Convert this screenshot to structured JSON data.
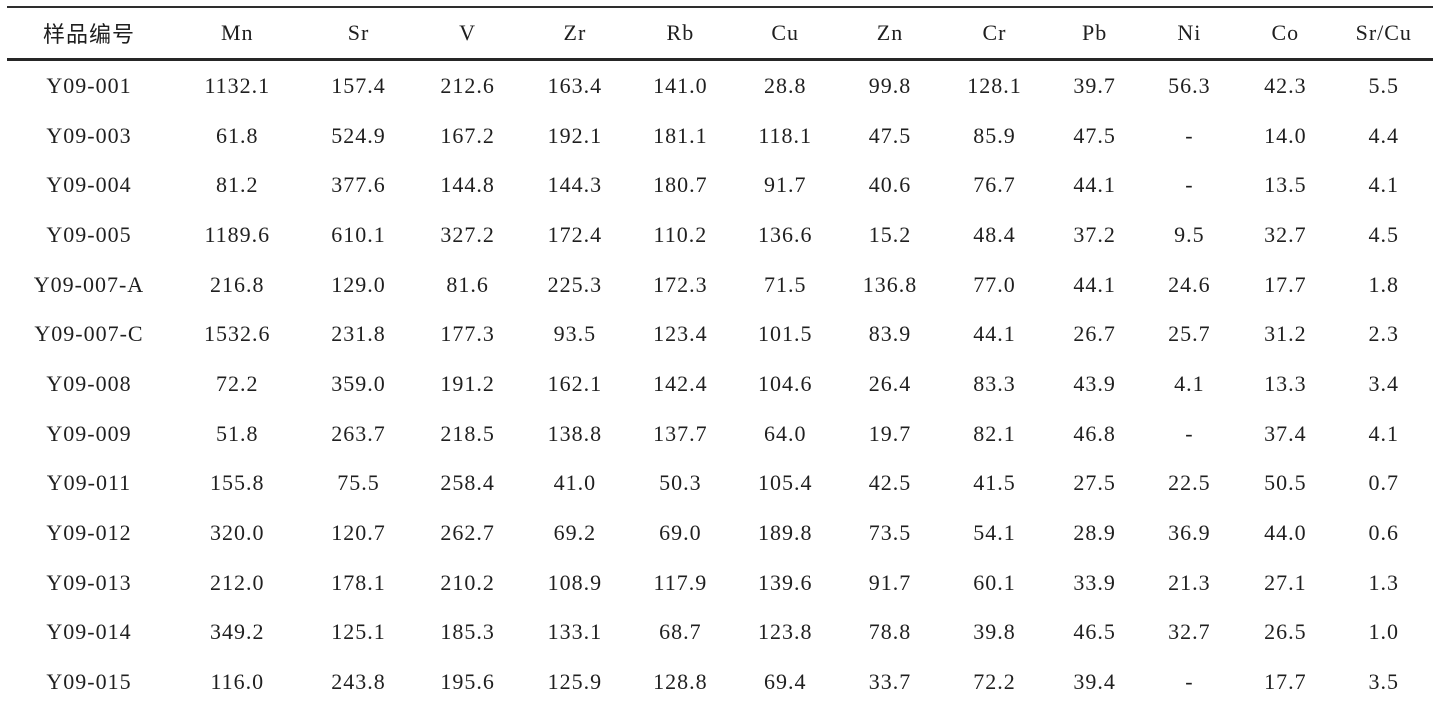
{
  "table": {
    "missing_value_marker": "-",
    "columns": [
      "样品编号",
      "Mn",
      "Sr",
      "V",
      "Zr",
      "Rb",
      "Cu",
      "Zn",
      "Cr",
      "Pb",
      "Ni",
      "Co",
      "Sr/Cu"
    ],
    "rows": [
      {
        "sample_id": "Y09-001",
        "values": [
          "1132.1",
          "157.4",
          "212.6",
          "163.4",
          "141.0",
          "28.8",
          "99.8",
          "128.1",
          "39.7",
          "56.3",
          "42.3",
          "5.5"
        ]
      },
      {
        "sample_id": "Y09-003",
        "values": [
          "61.8",
          "524.9",
          "167.2",
          "192.1",
          "181.1",
          "118.1",
          "47.5",
          "85.9",
          "47.5",
          "-",
          "14.0",
          "4.4"
        ]
      },
      {
        "sample_id": "Y09-004",
        "values": [
          "81.2",
          "377.6",
          "144.8",
          "144.3",
          "180.7",
          "91.7",
          "40.6",
          "76.7",
          "44.1",
          "-",
          "13.5",
          "4.1"
        ]
      },
      {
        "sample_id": "Y09-005",
        "values": [
          "1189.6",
          "610.1",
          "327.2",
          "172.4",
          "110.2",
          "136.6",
          "15.2",
          "48.4",
          "37.2",
          "9.5",
          "32.7",
          "4.5"
        ]
      },
      {
        "sample_id": "Y09-007-A",
        "values": [
          "216.8",
          "129.0",
          "81.6",
          "225.3",
          "172.3",
          "71.5",
          "136.8",
          "77.0",
          "44.1",
          "24.6",
          "17.7",
          "1.8"
        ]
      },
      {
        "sample_id": "Y09-007-C",
        "values": [
          "1532.6",
          "231.8",
          "177.3",
          "93.5",
          "123.4",
          "101.5",
          "83.9",
          "44.1",
          "26.7",
          "25.7",
          "31.2",
          "2.3"
        ]
      },
      {
        "sample_id": "Y09-008",
        "values": [
          "72.2",
          "359.0",
          "191.2",
          "162.1",
          "142.4",
          "104.6",
          "26.4",
          "83.3",
          "43.9",
          "4.1",
          "13.3",
          "3.4"
        ]
      },
      {
        "sample_id": "Y09-009",
        "values": [
          "51.8",
          "263.7",
          "218.5",
          "138.8",
          "137.7",
          "64.0",
          "19.7",
          "82.1",
          "46.8",
          "-",
          "37.4",
          "4.1"
        ]
      },
      {
        "sample_id": "Y09-011",
        "values": [
          "155.8",
          "75.5",
          "258.4",
          "41.0",
          "50.3",
          "105.4",
          "42.5",
          "41.5",
          "27.5",
          "22.5",
          "50.5",
          "0.7"
        ]
      },
      {
        "sample_id": "Y09-012",
        "values": [
          "320.0",
          "120.7",
          "262.7",
          "69.2",
          "69.0",
          "189.8",
          "73.5",
          "54.1",
          "28.9",
          "36.9",
          "44.0",
          "0.6"
        ]
      },
      {
        "sample_id": "Y09-013",
        "values": [
          "212.0",
          "178.1",
          "210.2",
          "108.9",
          "117.9",
          "139.6",
          "91.7",
          "60.1",
          "33.9",
          "21.3",
          "27.1",
          "1.3"
        ]
      },
      {
        "sample_id": "Y09-014",
        "values": [
          "349.2",
          "125.1",
          "185.3",
          "133.1",
          "68.7",
          "123.8",
          "78.8",
          "39.8",
          "46.5",
          "32.7",
          "26.5",
          "1.0"
        ]
      },
      {
        "sample_id": "Y09-015",
        "values": [
          "116.0",
          "243.8",
          "195.6",
          "125.9",
          "128.8",
          "69.4",
          "33.7",
          "72.2",
          "39.4",
          "-",
          "17.7",
          "3.5"
        ]
      }
    ]
  }
}
